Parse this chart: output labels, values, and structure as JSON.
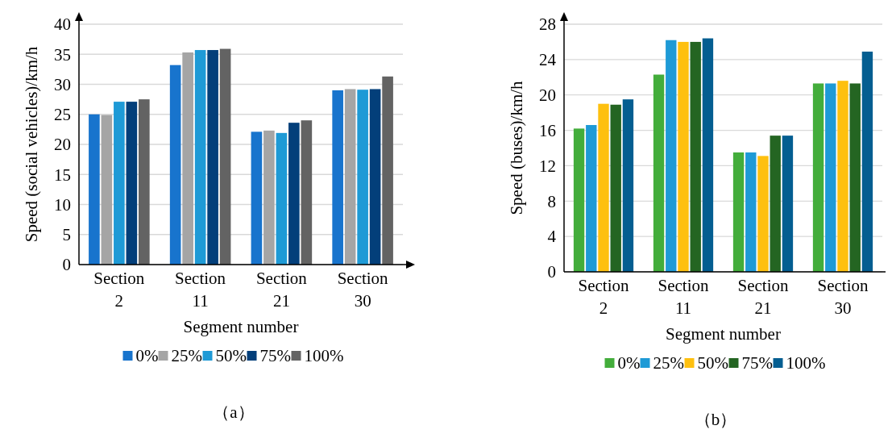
{
  "chart_data": [
    {
      "type": "bar",
      "xlabel": "Segment number",
      "ylabel": "Speed (social vehicles)/km/h",
      "categories": [
        "Section 2",
        "Section 11",
        "Section 21",
        "Section 30"
      ],
      "ylim": [
        0,
        40
      ],
      "yticks": [
        0,
        5,
        10,
        15,
        20,
        25,
        30,
        35,
        40
      ],
      "grid": "y",
      "legend": "bottom",
      "annotations": [
        "（a）"
      ],
      "series": [
        {
          "name": "0%",
          "color": "#1874cd",
          "values": [
            25.0,
            33.2,
            22.1,
            29.0
          ]
        },
        {
          "name": "25%",
          "color": "#a5a5a5",
          "values": [
            24.9,
            35.3,
            22.3,
            29.2
          ]
        },
        {
          "name": "50%",
          "color": "#1e9ad6",
          "values": [
            27.1,
            35.7,
            21.9,
            29.1
          ]
        },
        {
          "name": "75%",
          "color": "#033f7a",
          "values": [
            27.1,
            35.7,
            23.6,
            29.2
          ]
        },
        {
          "name": "100%",
          "color": "#636363",
          "values": [
            27.5,
            35.9,
            24.0,
            31.3
          ]
        }
      ]
    },
    {
      "type": "bar",
      "xlabel": "Segment number",
      "ylabel": "Speed (buses)/km/h",
      "categories": [
        "Section 2",
        "Section 11",
        "Section 21",
        "Section 30"
      ],
      "ylim": [
        0,
        28
      ],
      "yticks": [
        0,
        4,
        8,
        12,
        16,
        20,
        24,
        28
      ],
      "grid": "y",
      "legend": "bottom",
      "annotations": [
        "（b）"
      ],
      "series": [
        {
          "name": "0%",
          "color": "#43ad3b",
          "values": [
            16.2,
            22.3,
            13.5,
            21.3
          ]
        },
        {
          "name": "25%",
          "color": "#1e9ad6",
          "values": [
            16.6,
            26.2,
            13.5,
            21.3
          ]
        },
        {
          "name": "50%",
          "color": "#fec00f",
          "values": [
            19.0,
            26.0,
            13.1,
            21.6
          ]
        },
        {
          "name": "75%",
          "color": "#246522",
          "values": [
            18.9,
            26.0,
            15.4,
            21.3
          ]
        },
        {
          "name": "100%",
          "color": "#045e91",
          "values": [
            19.5,
            26.4,
            15.4,
            24.9
          ]
        }
      ]
    }
  ]
}
